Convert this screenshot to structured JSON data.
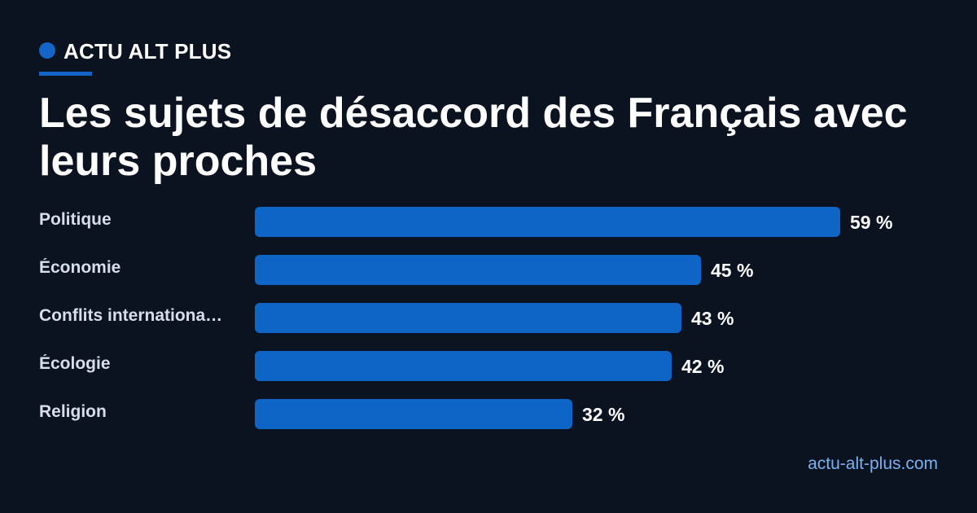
{
  "brand": {
    "name": "ACTU ALT PLUS",
    "accent_color": "#1565c8"
  },
  "title": "Les sujets de désaccord des Français avec leurs proches",
  "source": "actu-alt-plus.com",
  "chart_data": {
    "type": "bar",
    "orientation": "horizontal",
    "title": "Les sujets de désaccord des Français avec leurs proches",
    "categories": [
      "Politique",
      "Économie",
      "Conflits internationa…",
      "Écologie",
      "Religion"
    ],
    "values": [
      59,
      45,
      43,
      42,
      32
    ],
    "value_labels": [
      "59 %",
      "45 %",
      "43 %",
      "42 %",
      "32 %"
    ],
    "unit": "%",
    "xlim": [
      0,
      59
    ],
    "bar_color": "#0f65c5",
    "grid": false
  }
}
